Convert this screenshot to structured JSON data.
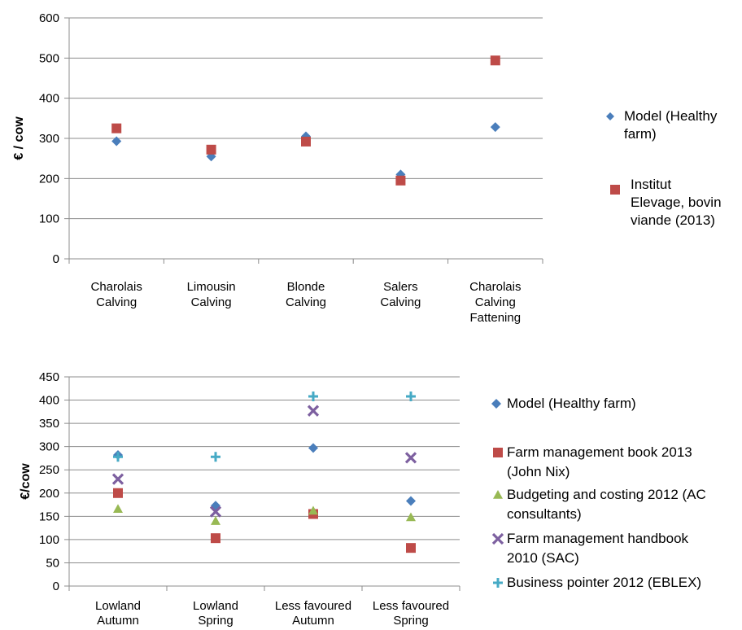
{
  "chart_data": [
    {
      "type": "scatter",
      "ylabel": "€ / cow",
      "ylim": [
        0,
        600
      ],
      "yticks": [
        0,
        100,
        200,
        300,
        400,
        500,
        600
      ],
      "grid": true,
      "legend_position": "right",
      "categories": [
        [
          "Charolais",
          "Calving"
        ],
        [
          "Limousin",
          "Calving"
        ],
        [
          "Blonde",
          "Calving"
        ],
        [
          "Salers",
          "Calving"
        ],
        [
          "Charolais",
          "Calving",
          "Fattening"
        ]
      ],
      "series": [
        {
          "name": [
            "Model (Healthy",
            "farm)"
          ],
          "marker": "diamond",
          "color": "#4A7EBB",
          "values": [
            293,
            255,
            305,
            210,
            328
          ]
        },
        {
          "name": [
            "Institut",
            "Elevage, bovin",
            "viande (2013)"
          ],
          "marker": "square",
          "color": "#BE4B48",
          "values": [
            325,
            272,
            292,
            195,
            494
          ]
        }
      ]
    },
    {
      "type": "scatter",
      "ylabel": "€/cow",
      "ylim": [
        0,
        450
      ],
      "yticks": [
        0,
        50,
        100,
        150,
        200,
        250,
        300,
        350,
        400,
        450
      ],
      "grid": true,
      "legend_position": "right",
      "categories": [
        [
          "Lowland",
          "Autumn"
        ],
        [
          "Lowland",
          "Spring"
        ],
        [
          "Less favoured",
          "Autumn"
        ],
        [
          "Less favoured",
          "Spring"
        ]
      ],
      "series": [
        {
          "name": [
            "Model (Healthy farm)"
          ],
          "marker": "diamond",
          "color": "#4A7EBB",
          "values": [
            282,
            173,
            297,
            183
          ]
        },
        {
          "name": [
            "Farm management book 2013",
            "(John Nix)"
          ],
          "marker": "square",
          "color": "#BE4B48",
          "values": [
            200,
            103,
            155,
            82
          ]
        },
        {
          "name": [
            "Budgeting and costing 2012 (AC",
            "consultants)"
          ],
          "marker": "triangle",
          "color": "#98B954",
          "values": [
            166,
            140,
            162,
            148
          ]
        },
        {
          "name": [
            "Farm management handbook",
            "2010 (SAC)"
          ],
          "marker": "x",
          "color": "#7D60A0",
          "values": [
            230,
            160,
            377,
            276
          ]
        },
        {
          "name": [
            "Business pointer 2012 (EBLEX)"
          ],
          "marker": "plus",
          "color": "#46AAC5",
          "values": [
            278,
            278,
            408,
            408
          ]
        }
      ]
    }
  ]
}
